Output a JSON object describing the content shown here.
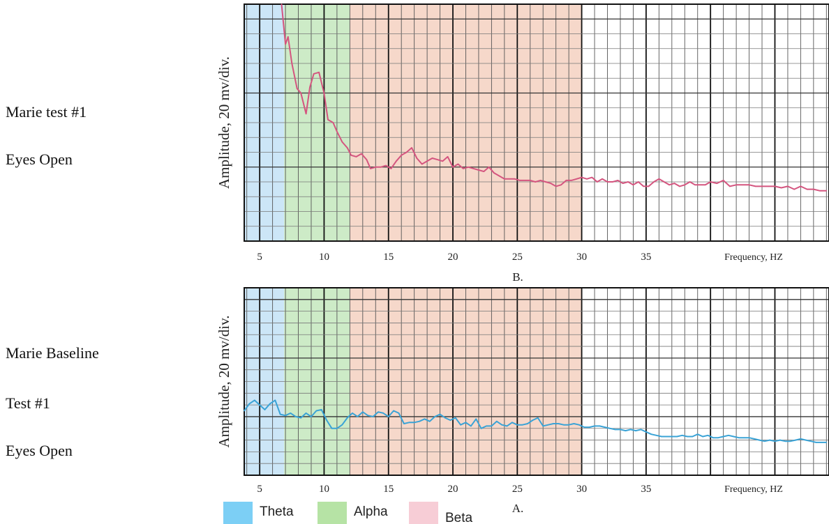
{
  "labels": {
    "top_line1": "Marie test #1",
    "top_line2": "Eyes Open",
    "bottom_line1": "Marie Baseline",
    "bottom_line2": "Test #1",
    "bottom_line3": "Eyes Open"
  },
  "legend": [
    {
      "label": "Theta",
      "color": "#7ccff5"
    },
    {
      "label": "Alpha",
      "color": "#b6e3a5"
    },
    {
      "label": "Beta",
      "color": "#f7cdd6"
    }
  ],
  "chart_data": [
    {
      "type": "line",
      "caption": "B.",
      "ylabel": "Amplitude, 20 mv/div.",
      "xlabel": "Frequency, HZ",
      "x_ticks": [
        5,
        10,
        15,
        20,
        25,
        30,
        35
      ],
      "xlim": [
        3.8,
        49.2
      ],
      "ylim": [
        0,
        16
      ],
      "grid": true,
      "bands": [
        {
          "name": "Theta",
          "from": 3.8,
          "to": 6.9,
          "color": "#cce6f7"
        },
        {
          "name": "Alpha",
          "from": 6.9,
          "to": 12,
          "color": "#cdebc7"
        },
        {
          "name": "Beta",
          "from": 12,
          "to": 30,
          "color": "#f6d8ca"
        }
      ],
      "series": [
        {
          "color": "#d4557f",
          "x": [
            6.7,
            7.0,
            7.2,
            7.5,
            7.9,
            8.2,
            8.6,
            8.9,
            9.2,
            9.6,
            10.0,
            10.3,
            10.7,
            11.0,
            11.4,
            11.8,
            12.1,
            12.5,
            12.9,
            13.3,
            13.6,
            14.0,
            14.4,
            14.8,
            15.2,
            15.6,
            16.0,
            16.4,
            16.8,
            17.2,
            17.6,
            18.0,
            18.4,
            18.8,
            19.2,
            19.6,
            20.0,
            20.4,
            20.8,
            21.2,
            21.6,
            22.0,
            22.4,
            22.8,
            23.2,
            23.6,
            24.0,
            24.4,
            24.8,
            25.2,
            25.6,
            26.0,
            26.4,
            26.8,
            27.2,
            27.6,
            28.0,
            28.4,
            28.8,
            29.2,
            29.6,
            30.0,
            30.4,
            30.8,
            31.2,
            31.6,
            32.0,
            32.4,
            32.8,
            33.2,
            33.6,
            34.0,
            34.4,
            34.8,
            35.2,
            35.6,
            36.0,
            36.4,
            36.8,
            37.2,
            37.6,
            38.0,
            38.4,
            38.8,
            39.2,
            39.6,
            40.0,
            40.5,
            41.0,
            41.5,
            42.0,
            42.5,
            43.0,
            43.5,
            44.0,
            44.5,
            45.0,
            45.5,
            46.0,
            46.5,
            47.0,
            47.5,
            48.0,
            48.5,
            49.0
          ],
          "y": [
            16.0,
            13.3,
            13.8,
            12.0,
            10.3,
            10.0,
            8.6,
            10.4,
            11.3,
            11.4,
            10.0,
            8.2,
            8.0,
            7.4,
            6.7,
            6.3,
            5.8,
            5.7,
            5.9,
            5.5,
            4.9,
            5.0,
            5.0,
            5.1,
            4.9,
            5.4,
            5.8,
            6.0,
            6.3,
            5.6,
            5.2,
            5.4,
            5.6,
            5.5,
            5.4,
            5.7,
            5.0,
            5.2,
            4.9,
            5.0,
            4.9,
            4.8,
            4.7,
            5.0,
            4.6,
            4.4,
            4.2,
            4.2,
            4.2,
            4.1,
            4.1,
            4.1,
            4.0,
            4.1,
            4.0,
            3.9,
            3.7,
            3.8,
            4.1,
            4.1,
            4.2,
            4.3,
            4.2,
            4.3,
            4.0,
            4.2,
            4.0,
            4.0,
            4.1,
            3.9,
            4.0,
            3.8,
            4.0,
            3.7,
            3.7,
            4.0,
            4.2,
            4.0,
            3.8,
            3.9,
            3.7,
            3.8,
            4.0,
            3.8,
            3.8,
            3.8,
            4.0,
            3.9,
            4.1,
            3.7,
            3.8,
            3.8,
            3.8,
            3.7,
            3.7,
            3.7,
            3.7,
            3.6,
            3.7,
            3.5,
            3.7,
            3.5,
            3.5,
            3.4,
            3.4
          ]
        }
      ]
    },
    {
      "type": "line",
      "caption": "A.",
      "ylabel": "Amplitude, 20 mv/div.",
      "xlabel": "Frequency, HZ",
      "x_ticks": [
        5,
        10,
        15,
        20,
        25,
        30,
        35
      ],
      "xlim": [
        3.8,
        49.2
      ],
      "ylim": [
        0,
        16
      ],
      "grid": true,
      "bands": [
        {
          "name": "Theta",
          "from": 3.8,
          "to": 6.9,
          "color": "#cce6f7"
        },
        {
          "name": "Alpha",
          "from": 6.9,
          "to": 12,
          "color": "#cdebc7"
        },
        {
          "name": "Beta",
          "from": 12,
          "to": 30,
          "color": "#f6d8ca"
        }
      ],
      "series": [
        {
          "color": "#3aa3d6",
          "x": [
            3.8,
            4.2,
            4.6,
            5.0,
            5.4,
            5.8,
            6.2,
            6.6,
            7.0,
            7.4,
            7.8,
            8.2,
            8.6,
            9.0,
            9.4,
            9.8,
            10.2,
            10.6,
            11.0,
            11.4,
            11.8,
            12.2,
            12.6,
            13.0,
            13.4,
            13.8,
            14.2,
            14.6,
            15.0,
            15.4,
            15.8,
            16.2,
            16.6,
            17.0,
            17.4,
            17.8,
            18.2,
            18.6,
            19.0,
            19.4,
            19.8,
            20.2,
            20.6,
            21.0,
            21.4,
            21.8,
            22.2,
            22.6,
            23.0,
            23.4,
            23.8,
            24.2,
            24.6,
            25.0,
            25.4,
            25.8,
            26.2,
            26.6,
            27.0,
            27.4,
            27.8,
            28.2,
            28.6,
            29.0,
            29.4,
            29.8,
            30.2,
            30.6,
            31.0,
            31.4,
            31.8,
            32.2,
            32.6,
            33.0,
            33.4,
            33.8,
            34.2,
            34.6,
            35.0,
            35.4,
            35.8,
            36.2,
            36.6,
            37.0,
            37.4,
            37.8,
            38.2,
            38.6,
            39.0,
            39.4,
            39.8,
            40.2,
            40.6,
            41.0,
            41.4,
            41.8,
            42.2,
            42.6,
            43.0,
            43.4,
            43.8,
            44.2,
            44.6,
            45.0,
            45.4,
            45.8,
            46.2,
            46.6,
            47.0,
            47.4,
            47.8,
            48.2,
            48.6,
            49.0
          ],
          "y": [
            5.5,
            6.1,
            6.4,
            6.0,
            5.6,
            6.1,
            6.4,
            5.2,
            5.1,
            5.3,
            5.0,
            4.9,
            5.3,
            5.0,
            5.5,
            5.6,
            4.7,
            4.0,
            4.0,
            4.3,
            4.9,
            5.3,
            5.0,
            5.4,
            5.1,
            5.0,
            5.4,
            5.3,
            5.0,
            5.5,
            5.3,
            4.4,
            4.5,
            4.5,
            4.6,
            4.8,
            4.6,
            5.0,
            5.2,
            4.9,
            4.7,
            4.9,
            4.3,
            4.5,
            4.2,
            4.8,
            4.0,
            4.2,
            4.2,
            4.6,
            4.3,
            4.2,
            4.5,
            4.3,
            4.3,
            4.4,
            4.7,
            4.9,
            4.2,
            4.3,
            4.4,
            4.4,
            4.3,
            4.3,
            4.4,
            4.3,
            4.1,
            4.1,
            4.2,
            4.2,
            4.1,
            4.0,
            3.9,
            3.9,
            3.8,
            3.9,
            3.8,
            3.9,
            3.7,
            3.5,
            3.4,
            3.3,
            3.3,
            3.3,
            3.3,
            3.4,
            3.3,
            3.3,
            3.5,
            3.3,
            3.4,
            3.2,
            3.2,
            3.3,
            3.4,
            3.3,
            3.2,
            3.2,
            3.2,
            3.1,
            3.0,
            2.9,
            3.0,
            2.9,
            3.0,
            2.9,
            2.9,
            3.0,
            3.1,
            3.0,
            2.9,
            2.8,
            2.8,
            2.8
          ]
        }
      ]
    }
  ]
}
